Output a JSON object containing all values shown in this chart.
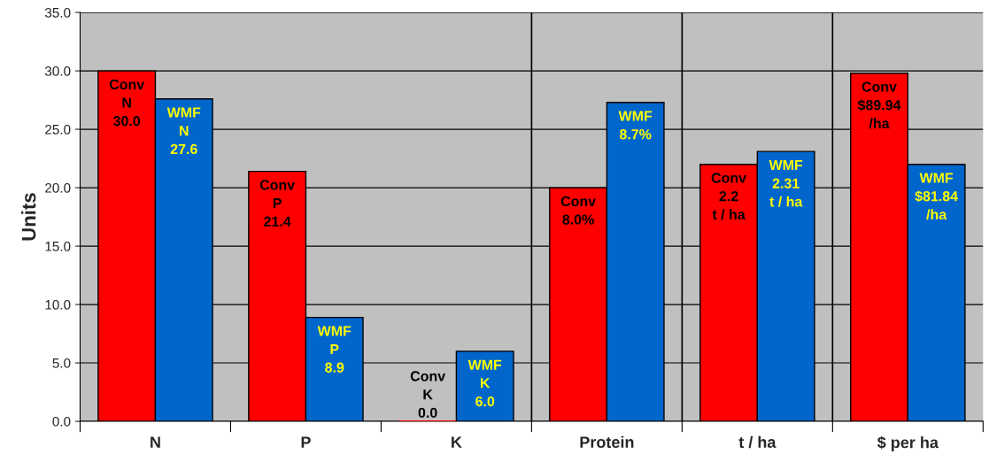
{
  "chart_data": {
    "type": "bar",
    "ylabel": "Units",
    "categories": [
      "N",
      "P",
      "K",
      "Protein",
      "t / ha",
      "$ per ha"
    ],
    "series": [
      {
        "color": "#ff0000",
        "values": [
          30.0,
          21.4,
          0.0,
          20.0,
          22.0,
          29.8
        ],
        "value_labels": [
          "Conv\nN\n30.0",
          "Conv\nP\n21.4",
          "Conv\nK\n0.0",
          "Conv\n8.0%",
          "Conv\n2.2\nt / ha",
          "Conv\n$89.94\n/ha"
        ]
      },
      {
        "color": "#0066cc",
        "values": [
          27.6,
          8.9,
          6.0,
          27.3,
          23.1,
          22.0
        ],
        "value_labels": [
          "WMF\nN\n27.6",
          "WMF\nP\n8.9",
          "WMF\nK\n6.0",
          "WMF\n8.7%",
          "WMF\n2.31\nt / ha",
          "WMF\n$81.84\n/ha"
        ]
      }
    ],
    "ylim": [
      0,
      35
    ],
    "yticks": [
      {
        "value": 0,
        "label": "0.0"
      },
      {
        "value": 5,
        "label": "5.0"
      },
      {
        "value": 10,
        "label": "10.0"
      },
      {
        "value": 15,
        "label": "15.0"
      },
      {
        "value": 20,
        "label": "20.0"
      },
      {
        "value": 25,
        "label": "25.0"
      },
      {
        "value": 30,
        "label": "30.0"
      },
      {
        "value": 35,
        "label": "35.0"
      }
    ],
    "grid": "y",
    "legend": false
  }
}
